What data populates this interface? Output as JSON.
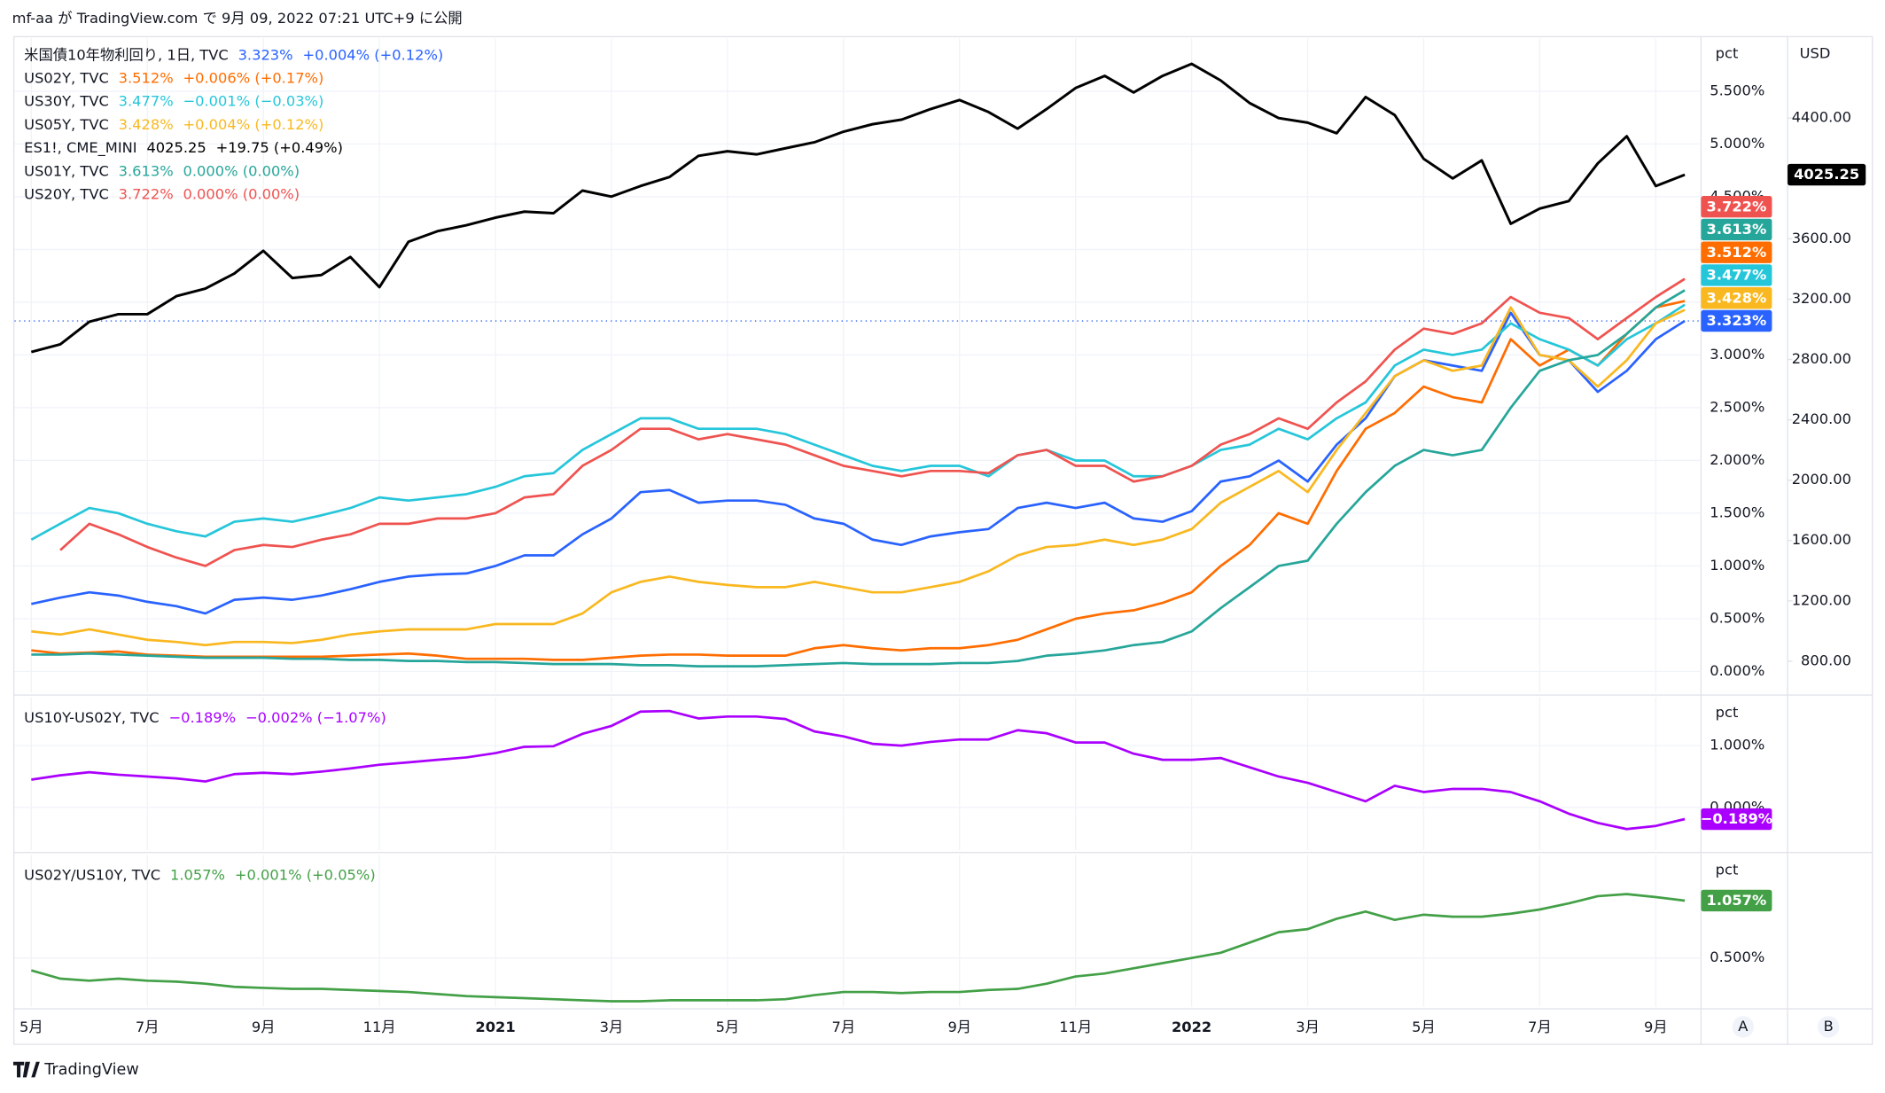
{
  "header": {
    "text": "mf-aa が TradingView.com で 9月 09, 2022 07:21 UTC+9 に公開"
  },
  "footer": {
    "brand": "TradingView"
  },
  "buttons": [
    "A",
    "B"
  ],
  "chart_data": [
    {
      "type": "line",
      "axis_label": "pct",
      "y2_label": "USD",
      "grid": true,
      "price_line": "dotted",
      "xlim": [
        -0.58,
        57.56
      ],
      "xticks": [
        {
          "value": 0,
          "label": "5月"
        },
        {
          "value": 4,
          "label": "7月"
        },
        {
          "value": 8,
          "label": "9月"
        },
        {
          "value": 12,
          "label": "11月"
        },
        {
          "value": 16,
          "label": "2021"
        },
        {
          "value": 20,
          "label": "3月"
        },
        {
          "value": 24,
          "label": "5月"
        },
        {
          "value": 28,
          "label": "7月"
        },
        {
          "value": 32,
          "label": "9月"
        },
        {
          "value": 36,
          "label": "11月"
        },
        {
          "value": 40,
          "label": "2022"
        },
        {
          "value": 44,
          "label": "3月"
        },
        {
          "value": 48,
          "label": "5月"
        },
        {
          "value": 52,
          "label": "7月"
        },
        {
          "value": 56,
          "label": "9月"
        }
      ],
      "ylim": [
        -0.2,
        6.0
      ],
      "yticks": [
        {
          "value": 0,
          "label": "0.000%"
        },
        {
          "value": 0.5,
          "label": "0.500%"
        },
        {
          "value": 1,
          "label": "1.000%"
        },
        {
          "value": 1.5,
          "label": "1.500%"
        },
        {
          "value": 2,
          "label": "2.000%"
        },
        {
          "value": 2.5,
          "label": "2.500%"
        },
        {
          "value": 3,
          "label": "3.000%"
        },
        {
          "value": 3.5,
          "label": "3.500%"
        },
        {
          "value": 4,
          "label": "4.000%"
        },
        {
          "value": 4.5,
          "label": "4.500%"
        },
        {
          "value": 5,
          "label": "5.000%"
        },
        {
          "value": 5.5,
          "label": "5.500%"
        }
      ],
      "y2lim": [
        592,
        4928
      ],
      "y2ticks": [
        {
          "value": 800,
          "label": "800.00"
        },
        {
          "value": 1200,
          "label": "1200.00"
        },
        {
          "value": 1600,
          "label": "1600.00"
        },
        {
          "value": 2000,
          "label": "2000.00"
        },
        {
          "value": 2400,
          "label": "2400.00"
        },
        {
          "value": 2800,
          "label": "2800.00"
        },
        {
          "value": 3200,
          "label": "3200.00"
        },
        {
          "value": 3600,
          "label": "3600.00"
        },
        {
          "value": 4000,
          "label": "4000.00"
        },
        {
          "value": 4400,
          "label": "4400.00"
        }
      ],
      "series": [
        {
          "name": "米国債10年物利回り, 1日, TVC",
          "color": "#2962ff",
          "last_label": "3.323%",
          "change": "+0.004% (+0.12%)",
          "values": [
            0.64,
            0.7,
            0.75,
            0.72,
            0.66,
            0.62,
            0.55,
            0.68,
            0.7,
            0.68,
            0.72,
            0.78,
            0.85,
            0.9,
            0.92,
            0.93,
            1.0,
            1.1,
            1.1,
            1.3,
            1.45,
            1.7,
            1.72,
            1.6,
            1.62,
            1.62,
            1.58,
            1.45,
            1.4,
            1.25,
            1.2,
            1.28,
            1.32,
            1.35,
            1.55,
            1.6,
            1.55,
            1.6,
            1.45,
            1.42,
            1.52,
            1.8,
            1.85,
            2.0,
            1.8,
            2.15,
            2.4,
            2.8,
            2.95,
            2.9,
            2.85,
            3.4,
            3.0,
            2.95,
            2.65,
            2.85,
            3.15,
            3.323
          ]
        },
        {
          "name": "US02Y, TVC",
          "color": "#ff6d00",
          "last_label": "3.512%",
          "change": "+0.006% (+0.17%)",
          "values": [
            0.2,
            0.17,
            0.18,
            0.19,
            0.16,
            0.15,
            0.14,
            0.14,
            0.14,
            0.14,
            0.14,
            0.15,
            0.16,
            0.17,
            0.15,
            0.12,
            0.12,
            0.12,
            0.11,
            0.11,
            0.13,
            0.15,
            0.16,
            0.16,
            0.15,
            0.15,
            0.15,
            0.22,
            0.25,
            0.22,
            0.2,
            0.22,
            0.22,
            0.25,
            0.3,
            0.4,
            0.5,
            0.55,
            0.58,
            0.65,
            0.75,
            1.0,
            1.2,
            1.5,
            1.4,
            1.9,
            2.3,
            2.45,
            2.7,
            2.6,
            2.55,
            3.15,
            2.9,
            3.05,
            2.9,
            3.2,
            3.45,
            3.512
          ]
        },
        {
          "name": "US30Y, TVC",
          "color": "#26c6da",
          "last_label": "3.477%",
          "change": "−0.001% (−0.03%)",
          "values": [
            1.25,
            1.4,
            1.55,
            1.5,
            1.4,
            1.33,
            1.28,
            1.42,
            1.45,
            1.42,
            1.48,
            1.55,
            1.65,
            1.62,
            1.65,
            1.68,
            1.75,
            1.85,
            1.88,
            2.1,
            2.25,
            2.4,
            2.4,
            2.3,
            2.3,
            2.3,
            2.25,
            2.15,
            2.05,
            1.95,
            1.9,
            1.95,
            1.95,
            1.85,
            2.05,
            2.1,
            2.0,
            2.0,
            1.85,
            1.85,
            1.95,
            2.1,
            2.15,
            2.3,
            2.2,
            2.4,
            2.55,
            2.9,
            3.05,
            3.0,
            3.05,
            3.3,
            3.15,
            3.05,
            2.9,
            3.15,
            3.3,
            3.477
          ]
        },
        {
          "name": "US05Y, TVC",
          "color": "#f9b820",
          "last_label": "3.428%",
          "change": "+0.004% (+0.12%)",
          "values": [
            0.38,
            0.35,
            0.4,
            0.35,
            0.3,
            0.28,
            0.25,
            0.28,
            0.28,
            0.27,
            0.3,
            0.35,
            0.38,
            0.4,
            0.4,
            0.4,
            0.45,
            0.45,
            0.45,
            0.55,
            0.75,
            0.85,
            0.9,
            0.85,
            0.82,
            0.8,
            0.8,
            0.85,
            0.8,
            0.75,
            0.75,
            0.8,
            0.85,
            0.95,
            1.1,
            1.18,
            1.2,
            1.25,
            1.2,
            1.25,
            1.35,
            1.6,
            1.75,
            1.9,
            1.7,
            2.1,
            2.45,
            2.8,
            2.95,
            2.85,
            2.9,
            3.45,
            3.0,
            2.95,
            2.7,
            2.95,
            3.3,
            3.428
          ]
        },
        {
          "name": "ES1!, CME_MINI",
          "color": "#000000",
          "axis": "y2",
          "last_label": "4025.25",
          "change": "+19.75 (+0.49%)",
          "values": [
            2850,
            2900,
            3050,
            3100,
            3100,
            3220,
            3270,
            3370,
            3520,
            3340,
            3360,
            3480,
            3280,
            3580,
            3650,
            3690,
            3740,
            3780,
            3770,
            3920,
            3880,
            3950,
            4010,
            4150,
            4180,
            4160,
            4200,
            4240,
            4310,
            4360,
            4390,
            4460,
            4520,
            4440,
            4330,
            4460,
            4600,
            4680,
            4570,
            4680,
            4760,
            4650,
            4500,
            4400,
            4370,
            4300,
            4540,
            4420,
            4130,
            4000,
            4120,
            3700,
            3800,
            3850,
            4100,
            4280,
            3950,
            4025.25
          ]
        },
        {
          "name": "US01Y, TVC",
          "color": "#26a69a",
          "last_label": "3.613%",
          "change": "0.000% (0.00%)",
          "values": [
            0.16,
            0.16,
            0.17,
            0.16,
            0.15,
            0.14,
            0.13,
            0.13,
            0.13,
            0.12,
            0.12,
            0.11,
            0.11,
            0.1,
            0.1,
            0.09,
            0.09,
            0.08,
            0.07,
            0.07,
            0.07,
            0.06,
            0.06,
            0.05,
            0.05,
            0.05,
            0.06,
            0.07,
            0.08,
            0.07,
            0.07,
            0.07,
            0.08,
            0.08,
            0.1,
            0.15,
            0.17,
            0.2,
            0.25,
            0.28,
            0.38,
            0.6,
            0.8,
            1.0,
            1.05,
            1.4,
            1.7,
            1.95,
            2.1,
            2.05,
            2.1,
            2.5,
            2.85,
            2.95,
            3.0,
            3.2,
            3.45,
            3.613
          ]
        },
        {
          "name": "US20Y, TVC",
          "color": "#ef5350",
          "last_label": "3.722%",
          "change": "0.000% (0.00%)",
          "values": [
            null,
            1.15,
            1.4,
            1.3,
            1.18,
            1.08,
            1.0,
            1.15,
            1.2,
            1.18,
            1.25,
            1.3,
            1.4,
            1.4,
            1.45,
            1.45,
            1.5,
            1.65,
            1.68,
            1.95,
            2.1,
            2.3,
            2.3,
            2.2,
            2.25,
            2.2,
            2.15,
            2.05,
            1.95,
            1.9,
            1.85,
            1.9,
            1.9,
            1.88,
            2.05,
            2.1,
            1.95,
            1.95,
            1.8,
            1.85,
            1.95,
            2.15,
            2.25,
            2.4,
            2.3,
            2.55,
            2.75,
            3.05,
            3.25,
            3.2,
            3.3,
            3.55,
            3.4,
            3.35,
            3.15,
            3.35,
            3.55,
            3.722
          ]
        }
      ]
    },
    {
      "type": "line",
      "axis_label": "pct",
      "grid": true,
      "ylim": [
        -0.69,
        1.78
      ],
      "yticks": [
        {
          "value": 0,
          "label": "0.000%"
        },
        {
          "value": 1,
          "label": "1.000%"
        }
      ],
      "series": [
        {
          "name": "US10Y-US02Y, TVC",
          "color": "#aa00ff",
          "last_label": "−0.189%",
          "change": "−0.002% (−1.07%)",
          "values": [
            0.45,
            0.52,
            0.57,
            0.53,
            0.5,
            0.47,
            0.42,
            0.54,
            0.56,
            0.54,
            0.58,
            0.63,
            0.69,
            0.73,
            0.77,
            0.81,
            0.88,
            0.98,
            0.99,
            1.19,
            1.32,
            1.55,
            1.56,
            1.44,
            1.47,
            1.47,
            1.43,
            1.23,
            1.15,
            1.03,
            1.0,
            1.06,
            1.1,
            1.1,
            1.25,
            1.2,
            1.05,
            1.05,
            0.87,
            0.77,
            0.77,
            0.8,
            0.65,
            0.5,
            0.4,
            0.25,
            0.1,
            0.35,
            0.25,
            0.3,
            0.3,
            0.25,
            0.1,
            -0.1,
            -0.25,
            -0.35,
            -0.3,
            -0.189
          ]
        }
      ]
    },
    {
      "type": "line",
      "axis_label": "pct",
      "grid": true,
      "ylim": [
        0.03,
        1.5
      ],
      "yticks": [
        {
          "value": 0.5,
          "label": "0.500%"
        }
      ],
      "series": [
        {
          "name": "US02Y/US10Y, TVC",
          "color": "#43a047",
          "last_label": "1.057%",
          "change": "+0.001% (+0.05%)",
          "values": [
            0.38,
            0.3,
            0.28,
            0.3,
            0.28,
            0.27,
            0.25,
            0.22,
            0.21,
            0.2,
            0.2,
            0.19,
            0.18,
            0.17,
            0.15,
            0.13,
            0.12,
            0.11,
            0.1,
            0.09,
            0.08,
            0.08,
            0.09,
            0.09,
            0.09,
            0.09,
            0.1,
            0.14,
            0.17,
            0.17,
            0.16,
            0.17,
            0.17,
            0.19,
            0.2,
            0.25,
            0.32,
            0.35,
            0.4,
            0.45,
            0.5,
            0.55,
            0.65,
            0.75,
            0.78,
            0.88,
            0.95,
            0.87,
            0.92,
            0.9,
            0.9,
            0.93,
            0.97,
            1.03,
            1.1,
            1.12,
            1.09,
            1.057
          ]
        }
      ]
    }
  ]
}
